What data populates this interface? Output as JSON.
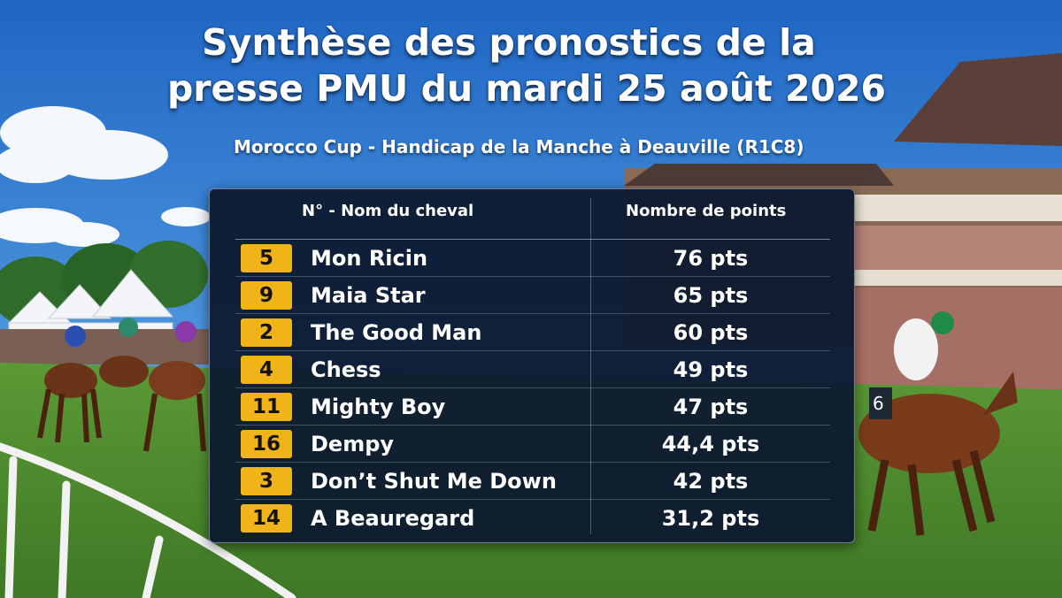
{
  "header": {
    "title_line1": "Synthèse des pronostics de la",
    "title_line2": "presse PMU du mardi 25 août 2026",
    "subtitle": "Morocco Cup - Handicap de la Manche à Deauville (R1C8)"
  },
  "table": {
    "col_name": "N° - Nom du cheval",
    "col_points": "Nombre de points",
    "rows": [
      {
        "num": "5",
        "name": "Mon Ricin",
        "points": "76 pts"
      },
      {
        "num": "9",
        "name": "Maia Star",
        "points": "65 pts"
      },
      {
        "num": "2",
        "name": "The Good Man",
        "points": "60 pts"
      },
      {
        "num": "4",
        "name": "Chess",
        "points": "49 pts"
      },
      {
        "num": "11",
        "name": "Mighty Boy",
        "points": "47 pts"
      },
      {
        "num": "16",
        "name": "Dempy",
        "points": "44,4 pts"
      },
      {
        "num": "3",
        "name": "Don’t Shut Me Down",
        "points": "42 pts"
      },
      {
        "num": "14",
        "name": "A Beauregard",
        "points": "31,2 pts"
      }
    ]
  },
  "background": {
    "scene": "racecourse-photo",
    "jockey_number": "6"
  },
  "colors": {
    "badge": "#f0b419",
    "panel": "#0c1830",
    "sky": "#3f86d6",
    "grass": "#4f8a2e"
  }
}
